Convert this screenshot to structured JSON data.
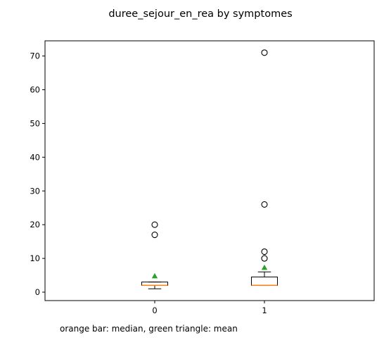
{
  "chart_data": {
    "type": "box",
    "title": "duree_sejour_en_rea by symptomes",
    "xlabel": "",
    "ylabel": "",
    "categories": [
      "0",
      "1"
    ],
    "ylim": [
      -2.5,
      74.5
    ],
    "yticks": [
      0,
      10,
      20,
      30,
      40,
      50,
      60,
      70
    ],
    "grid": false,
    "boxes": [
      {
        "category": "0",
        "whisker_low": 1,
        "q1": 2,
        "median": 2,
        "q3": 3,
        "whisker_high": 3,
        "mean": 4.8,
        "outliers": [
          17,
          20
        ]
      },
      {
        "category": "1",
        "whisker_low": 2,
        "q1": 2,
        "median": 2,
        "q3": 4.5,
        "whisker_high": 6,
        "mean": 7.3,
        "outliers": [
          10,
          12,
          26,
          71
        ]
      }
    ],
    "caption": "orange bar: median, green triangle: mean",
    "colors": {
      "median": "#ff7f0e",
      "mean": "#2ca02c",
      "box": "#000000"
    }
  }
}
